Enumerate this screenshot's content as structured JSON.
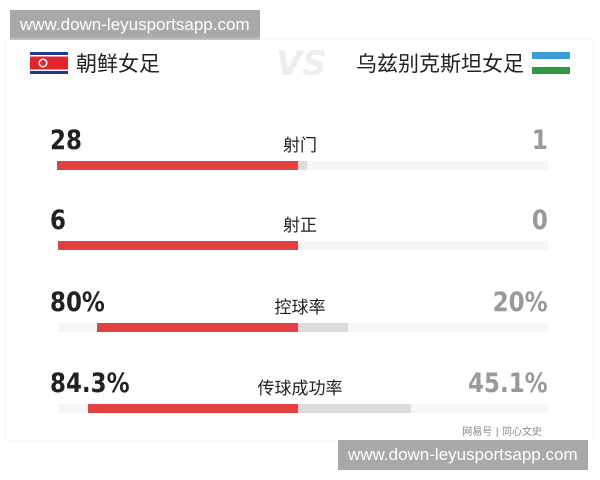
{
  "watermark": "www.down-leyusportsapp.com",
  "home": {
    "name": "朝鲜女足",
    "flag": "north-korea-flag-icon"
  },
  "away": {
    "name": "乌兹别克斯坦女足",
    "flag": "uzbekistan-flag-icon"
  },
  "vs": "VS",
  "colors": {
    "home": "#e34141",
    "away": "#dcdcdc"
  },
  "stats": [
    {
      "label": "射门",
      "home": "28",
      "away": "1",
      "home_share": 0.966
    },
    {
      "label": "射正",
      "home": "6",
      "away": "0",
      "home_share": 1.0
    },
    {
      "label": "控球率",
      "home": "80%",
      "away": "20%",
      "home_share": 0.8
    },
    {
      "label": "传球成功率",
      "home": "84.3%",
      "away": "45.1%",
      "home_share": 0.65
    }
  ],
  "source": "网易号 | 同心文史"
}
